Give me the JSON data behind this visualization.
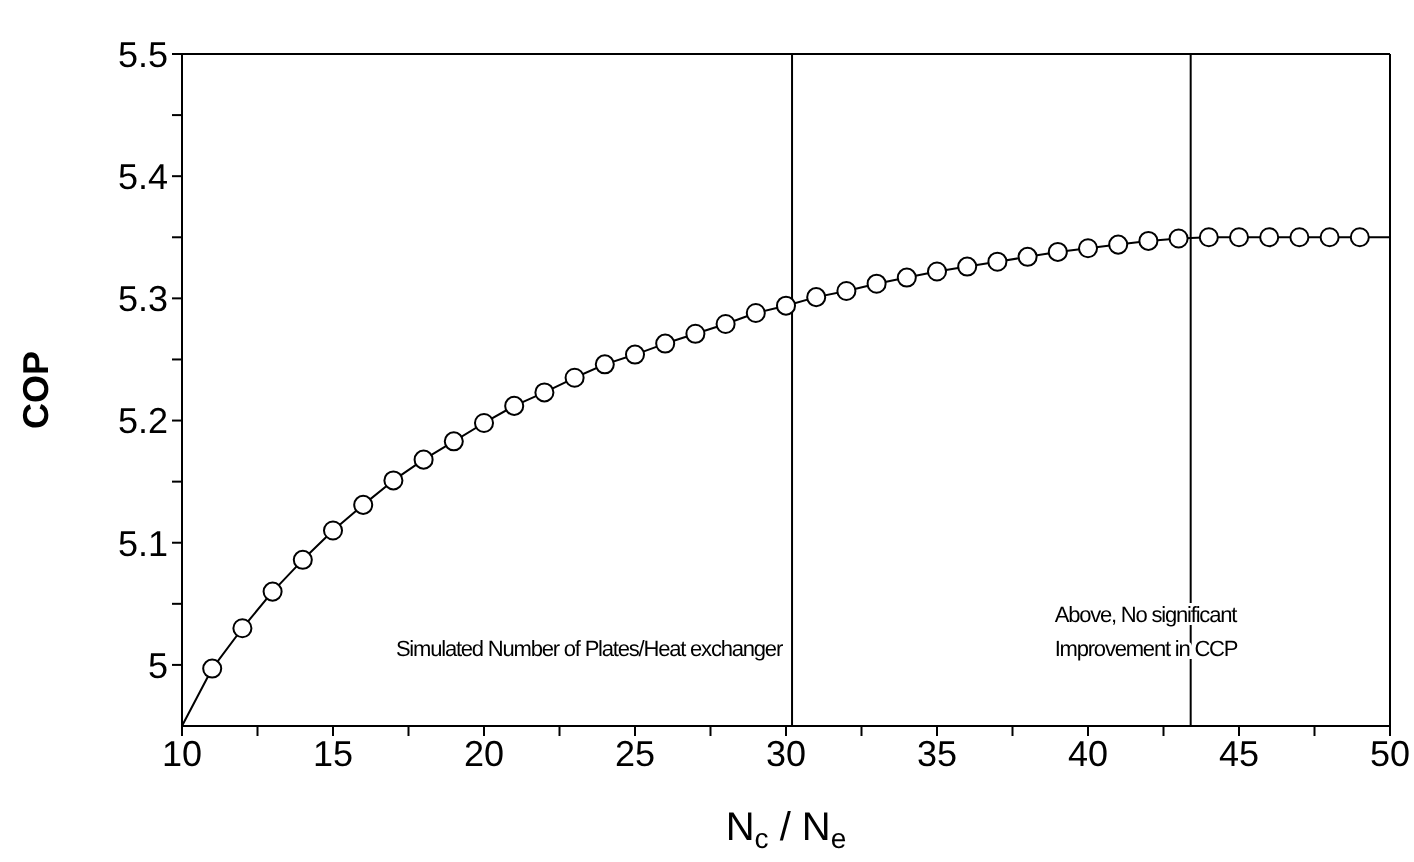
{
  "chart_data": {
    "type": "line",
    "xlabel": "N$_{c}$ / N$_{e}$",
    "ylabel": "COP",
    "xlim": [
      10,
      50
    ],
    "ylim": [
      4.95,
      5.5
    ],
    "xticks": [
      10,
      {
        "value": 12.5,
        "label": null
      },
      15,
      {
        "value": 17.5,
        "label": null
      },
      20,
      {
        "value": 22.5,
        "label": null
      },
      25,
      {
        "value": 27.5,
        "label": null
      },
      30,
      {
        "value": 32.5,
        "label": null
      },
      35,
      {
        "value": 37.5,
        "label": null
      },
      40,
      {
        "value": 42.5,
        "label": null
      },
      45,
      {
        "value": 47.5,
        "label": null
      },
      50
    ],
    "yticks": [
      5,
      {
        "value": 5.05,
        "label": null
      },
      5.1,
      {
        "value": 5.15,
        "label": null
      },
      5.2,
      {
        "value": 5.25,
        "label": null
      },
      5.3,
      {
        "value": 5.35,
        "label": null
      },
      5.4,
      {
        "value": 5.45,
        "label": null
      },
      5.5
    ],
    "grid": false,
    "series": [
      {
        "marker": "none",
        "color": "#000000",
        "x": [
          10,
          11,
          12,
          13,
          14,
          15,
          16,
          17,
          18,
          19,
          20,
          21,
          22,
          23,
          24,
          25,
          26,
          27,
          28,
          29,
          30,
          31,
          32,
          33,
          34,
          35,
          36,
          37,
          38,
          39,
          40,
          41,
          42,
          43,
          44,
          45,
          46,
          47,
          48,
          49,
          50
        ],
        "values": [
          4.95,
          4.997,
          5.03,
          5.06,
          5.086,
          5.11,
          5.131,
          5.151,
          5.168,
          5.183,
          5.198,
          5.212,
          5.223,
          5.235,
          5.246,
          5.254,
          5.263,
          5.271,
          5.279,
          5.288,
          5.294,
          5.301,
          5.306,
          5.312,
          5.317,
          5.322,
          5.326,
          5.33,
          5.334,
          5.338,
          5.341,
          5.344,
          5.347,
          5.349,
          5.35,
          5.35,
          5.35,
          5.35,
          5.35,
          5.35,
          5.35
        ]
      },
      {
        "type": "scatter",
        "marker": "circle",
        "color": "#000000",
        "x": [
          11,
          12,
          13,
          14,
          15,
          16,
          17,
          18,
          19,
          20,
          21,
          22,
          23,
          24,
          25,
          26,
          27,
          28,
          29,
          30,
          31,
          32,
          33,
          34,
          35,
          36,
          37,
          38,
          39,
          40,
          41,
          42,
          43,
          44,
          45,
          46,
          47,
          48,
          49
        ],
        "values": [
          4.997,
          5.03,
          5.06,
          5.086,
          5.11,
          5.131,
          5.151,
          5.168,
          5.183,
          5.198,
          5.212,
          5.223,
          5.235,
          5.246,
          5.254,
          5.263,
          5.271,
          5.279,
          5.288,
          5.294,
          5.301,
          5.306,
          5.312,
          5.317,
          5.322,
          5.326,
          5.33,
          5.334,
          5.338,
          5.341,
          5.344,
          5.347,
          5.349,
          5.35,
          5.35,
          5.35,
          5.35,
          5.35,
          5.35
        ]
      }
    ],
    "ref_lines": [
      {
        "axis": "x",
        "value": 30.2,
        "label": "Simulated Number of Plates/Heat exchanger",
        "color": "#000000"
      },
      {
        "axis": "x",
        "value": 43.4,
        "label": "Above, No significant\nImprovement in CCP",
        "color": "#000000"
      }
    ]
  }
}
